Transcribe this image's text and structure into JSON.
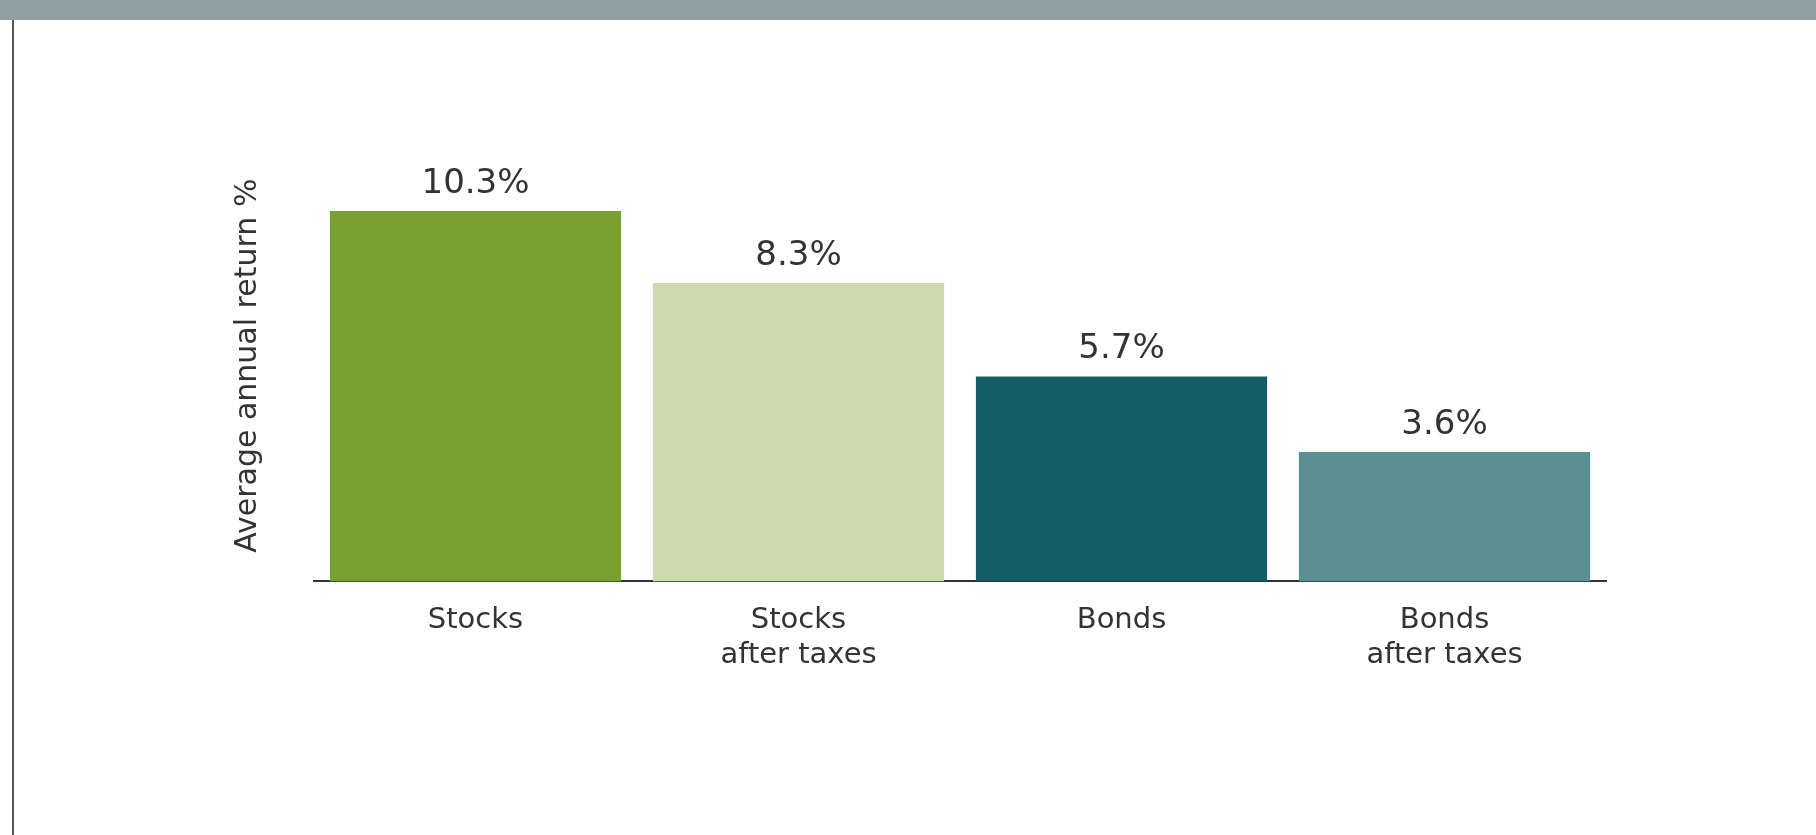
{
  "chart_data": {
    "type": "bar",
    "ylabel": "Average annual return %",
    "categories": [
      "Stocks",
      "Stocks after taxes",
      "Bonds",
      "Bonds after taxes"
    ],
    "values": [
      10.3,
      8.3,
      5.7,
      3.6
    ],
    "colors": [
      "#78a132",
      "#cbdbad",
      "#135e66",
      "#5a8f94"
    ],
    "value_labels": [
      "10.3%",
      "8.3%",
      "5.7%",
      "3.6%"
    ],
    "grid": false,
    "legend": false
  }
}
